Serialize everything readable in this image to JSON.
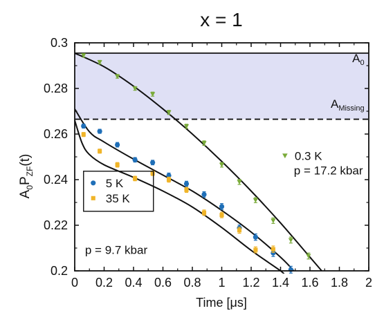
{
  "chart_data": {
    "type": "scatter",
    "title": "x = 1",
    "xlabel": "Time [μs]",
    "ylabel": "A0PZF(t)",
    "xlim": [
      0,
      2
    ],
    "ylim": [
      0.2,
      0.3
    ],
    "xticks": [
      "0",
      "0.2",
      "0.4",
      "0.6",
      "0.8",
      "1",
      "1.2",
      "1.4",
      "1.6",
      "1.8",
      "2"
    ],
    "yticks": [
      "0.2",
      "0.22",
      "0.24",
      "0.26",
      "0.28",
      "0.3"
    ],
    "grid": false,
    "shaded_band": {
      "ymin": 0.2665,
      "ymax": 0.2955,
      "color": "#dfe0f5"
    },
    "reference_lines": [
      {
        "name": "A0",
        "y": 0.2955,
        "style": "solid"
      },
      {
        "name": "AMissing",
        "y": 0.2665,
        "style": "dashed"
      }
    ],
    "series": [
      {
        "name": "0.3 K",
        "color": "#7aab3a",
        "marker": "triangle-down",
        "points": [
          {
            "x": 0.06,
            "y": 0.2945,
            "err": 0.0008
          },
          {
            "x": 0.17,
            "y": 0.2915,
            "err": 0.0008
          },
          {
            "x": 0.29,
            "y": 0.2853,
            "err": 0.0008
          },
          {
            "x": 0.41,
            "y": 0.28,
            "err": 0.0008
          },
          {
            "x": 0.53,
            "y": 0.2775,
            "err": 0.0009
          },
          {
            "x": 0.64,
            "y": 0.2695,
            "err": 0.0009
          },
          {
            "x": 0.76,
            "y": 0.2634,
            "err": 0.0009
          },
          {
            "x": 0.88,
            "y": 0.256,
            "err": 0.001
          },
          {
            "x": 1.0,
            "y": 0.2465,
            "err": 0.001
          },
          {
            "x": 1.12,
            "y": 0.239,
            "err": 0.0011
          },
          {
            "x": 1.23,
            "y": 0.231,
            "err": 0.0011
          },
          {
            "x": 1.35,
            "y": 0.222,
            "err": 0.0012
          },
          {
            "x": 1.47,
            "y": 0.2135,
            "err": 0.0013
          },
          {
            "x": 1.59,
            "y": 0.2065,
            "err": 0.0013
          }
        ],
        "fit": [
          [
            0,
            0.2955
          ],
          [
            0.2,
            0.2895
          ],
          [
            0.4,
            0.281
          ],
          [
            0.6,
            0.271
          ],
          [
            0.8,
            0.26
          ],
          [
            1.0,
            0.248
          ],
          [
            1.2,
            0.235
          ],
          [
            1.4,
            0.221
          ],
          [
            1.6,
            0.206
          ],
          [
            1.68,
            0.2
          ]
        ]
      },
      {
        "name": "5 K",
        "color": "#1f6fb8",
        "marker": "circle",
        "points": [
          {
            "x": 0.06,
            "y": 0.2635,
            "err": 0.0009
          },
          {
            "x": 0.17,
            "y": 0.2612,
            "err": 0.0009
          },
          {
            "x": 0.29,
            "y": 0.2553,
            "err": 0.001
          },
          {
            "x": 0.41,
            "y": 0.2487,
            "err": 0.001
          },
          {
            "x": 0.53,
            "y": 0.2475,
            "err": 0.001
          },
          {
            "x": 0.64,
            "y": 0.2418,
            "err": 0.0011
          },
          {
            "x": 0.76,
            "y": 0.2382,
            "err": 0.0011
          },
          {
            "x": 0.88,
            "y": 0.2335,
            "err": 0.0012
          },
          {
            "x": 1.0,
            "y": 0.2282,
            "err": 0.0013
          },
          {
            "x": 1.12,
            "y": 0.2188,
            "err": 0.0013
          },
          {
            "x": 1.23,
            "y": 0.2148,
            "err": 0.0014
          },
          {
            "x": 1.35,
            "y": 0.2078,
            "err": 0.0015
          },
          {
            "x": 1.47,
            "y": 0.2005,
            "err": 0.0015
          }
        ],
        "fit": [
          [
            0,
            0.271
          ],
          [
            0.1,
            0.261
          ],
          [
            0.2,
            0.2565
          ],
          [
            0.4,
            0.249
          ],
          [
            0.6,
            0.242
          ],
          [
            0.8,
            0.235
          ],
          [
            1.0,
            0.2265
          ],
          [
            1.2,
            0.217
          ],
          [
            1.4,
            0.206
          ],
          [
            1.49,
            0.2
          ]
        ]
      },
      {
        "name": "35 K",
        "color": "#f0b428",
        "marker": "square",
        "points": [
          {
            "x": 0.06,
            "y": 0.2598,
            "err": 0.0009
          },
          {
            "x": 0.17,
            "y": 0.2525,
            "err": 0.0009
          },
          {
            "x": 0.29,
            "y": 0.2465,
            "err": 0.001
          },
          {
            "x": 0.41,
            "y": 0.2405,
            "err": 0.001
          },
          {
            "x": 0.53,
            "y": 0.2428,
            "err": 0.001
          },
          {
            "x": 0.64,
            "y": 0.24,
            "err": 0.0011
          },
          {
            "x": 0.76,
            "y": 0.2355,
            "err": 0.0011
          },
          {
            "x": 0.88,
            "y": 0.2255,
            "err": 0.0012
          },
          {
            "x": 1.0,
            "y": 0.2245,
            "err": 0.0012
          },
          {
            "x": 1.12,
            "y": 0.2178,
            "err": 0.0013
          },
          {
            "x": 1.23,
            "y": 0.2092,
            "err": 0.0013
          },
          {
            "x": 1.35,
            "y": 0.2095,
            "err": 0.0014
          }
        ],
        "fit": [
          [
            0,
            0.266
          ],
          [
            0.05,
            0.256
          ],
          [
            0.1,
            0.251
          ],
          [
            0.2,
            0.2465
          ],
          [
            0.4,
            0.241
          ],
          [
            0.6,
            0.235
          ],
          [
            0.8,
            0.228
          ],
          [
            1.0,
            0.219
          ],
          [
            1.2,
            0.209
          ],
          [
            1.4,
            0.2
          ],
          [
            1.42,
            0.1985
          ]
        ]
      }
    ],
    "annotations": [
      {
        "text": "A",
        "sub": "0",
        "x": 1.97,
        "y": 0.2915,
        "anchor": "end"
      },
      {
        "text": "A",
        "sub": "Missing",
        "x": 1.97,
        "y": 0.2715,
        "anchor": "end"
      },
      {
        "text": "p = 17.2 kbar",
        "x": 1.96,
        "y": 0.2423,
        "anchor": "end"
      },
      {
        "text": "p = 9.7 kbar",
        "x": 0.07,
        "y": 0.2075,
        "anchor": "start"
      }
    ],
    "legends": [
      {
        "placement": "right-middle",
        "boxed": false,
        "entries": [
          {
            "series": "0.3 K"
          }
        ]
      },
      {
        "placement": "bottom-left",
        "boxed": true,
        "entries": [
          {
            "series": "5 K"
          },
          {
            "series": "35 K"
          }
        ]
      }
    ]
  }
}
